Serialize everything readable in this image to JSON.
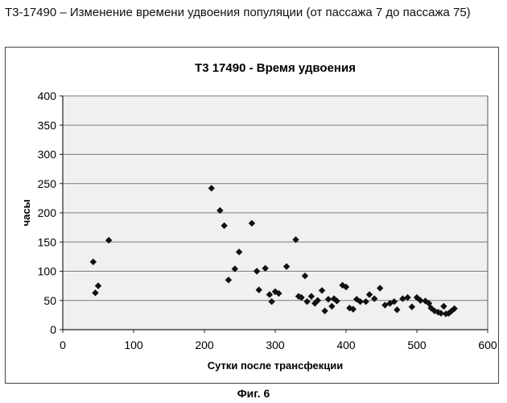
{
  "caption": "Т3-17490 – Изменение времени удвоения популяции (от пассажа 7 до пассажа 75)",
  "figure_label": "Фиг. 6",
  "colors": {
    "plot_bg": "#f0f0f0",
    "gridline": "#7a7a7a",
    "marker": "#111111",
    "axis": "#222222"
  },
  "chart_data": {
    "type": "scatter",
    "title": "T3 17490 - Время удвоения",
    "xlabel": "Сутки после трансфекции",
    "ylabel": "часы",
    "xlim": [
      0,
      600
    ],
    "ylim": [
      0,
      400
    ],
    "xticks": [
      0,
      100,
      200,
      300,
      400,
      500,
      600
    ],
    "yticks": [
      0,
      50,
      100,
      150,
      200,
      250,
      300,
      350,
      400
    ],
    "grid": {
      "horizontal": true,
      "vertical": false
    },
    "marker": "diamond",
    "series": [
      {
        "points": [
          [
            43,
            116
          ],
          [
            46,
            63
          ],
          [
            50,
            75
          ],
          [
            65,
            153
          ],
          [
            210,
            242
          ],
          [
            222,
            204
          ],
          [
            228,
            178
          ],
          [
            234,
            85
          ],
          [
            243,
            104
          ],
          [
            249,
            133
          ],
          [
            267,
            182
          ],
          [
            274,
            100
          ],
          [
            277,
            68
          ],
          [
            286,
            105
          ],
          [
            292,
            60
          ],
          [
            295,
            48
          ],
          [
            300,
            65
          ],
          [
            305,
            62
          ],
          [
            316,
            108
          ],
          [
            329,
            154
          ],
          [
            333,
            57
          ],
          [
            337,
            55
          ],
          [
            342,
            92
          ],
          [
            345,
            48
          ],
          [
            351,
            57
          ],
          [
            356,
            45
          ],
          [
            360,
            50
          ],
          [
            366,
            67
          ],
          [
            370,
            32
          ],
          [
            375,
            52
          ],
          [
            380,
            40
          ],
          [
            383,
            53
          ],
          [
            387,
            49
          ],
          [
            395,
            76
          ],
          [
            400,
            73
          ],
          [
            405,
            37
          ],
          [
            410,
            35
          ],
          [
            415,
            52
          ],
          [
            420,
            48
          ],
          [
            428,
            48
          ],
          [
            433,
            60
          ],
          [
            440,
            53
          ],
          [
            448,
            71
          ],
          [
            455,
            42
          ],
          [
            462,
            45
          ],
          [
            468,
            48
          ],
          [
            472,
            34
          ],
          [
            480,
            53
          ],
          [
            487,
            55
          ],
          [
            493,
            39
          ],
          [
            500,
            55
          ],
          [
            505,
            50
          ],
          [
            512,
            49
          ],
          [
            517,
            45
          ],
          [
            520,
            37
          ],
          [
            525,
            32
          ],
          [
            530,
            30
          ],
          [
            534,
            28
          ],
          [
            538,
            40
          ],
          [
            541,
            27
          ],
          [
            545,
            28
          ],
          [
            549,
            32
          ],
          [
            553,
            36
          ]
        ]
      }
    ]
  }
}
